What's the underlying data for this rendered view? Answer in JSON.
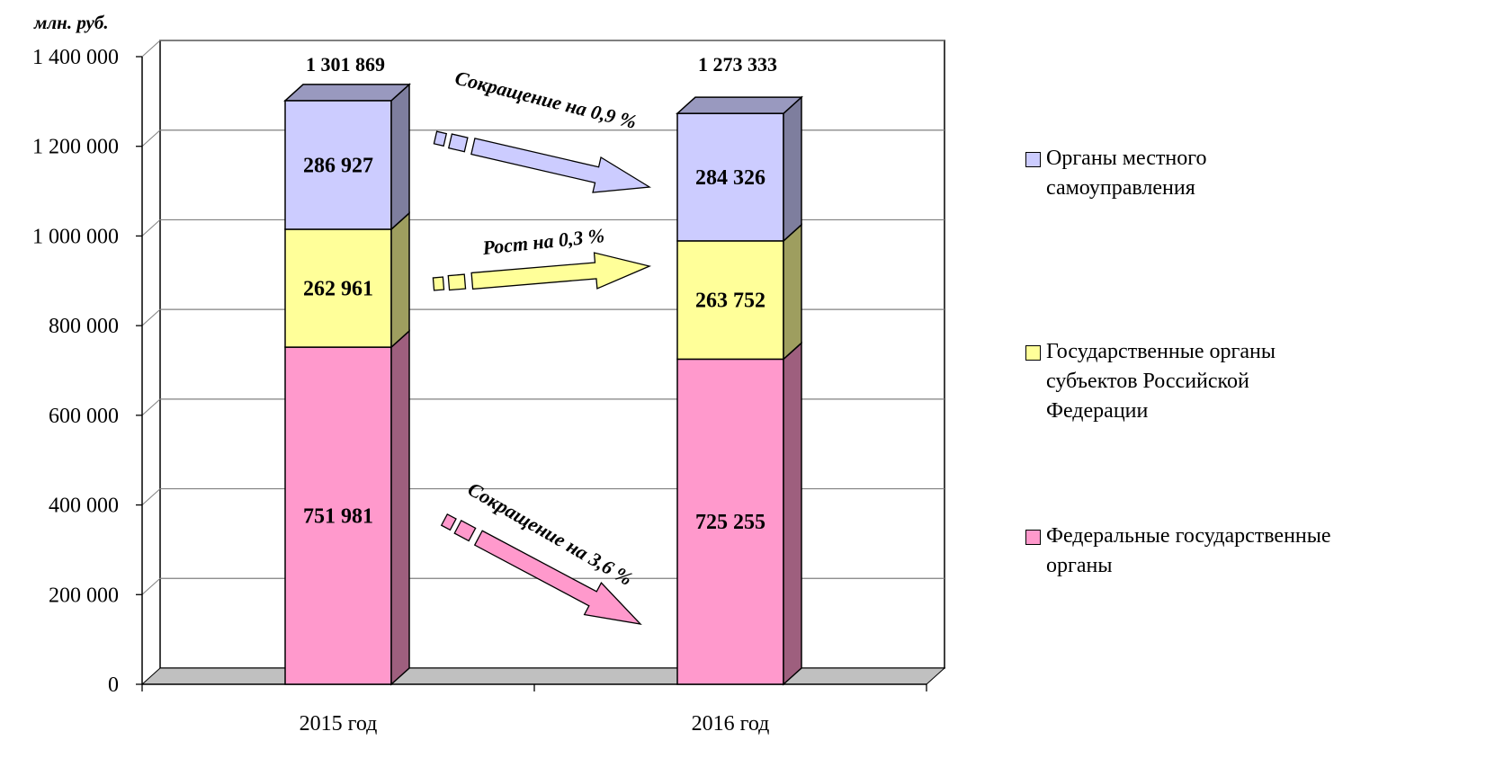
{
  "chart_data": {
    "type": "bar",
    "stacked": true,
    "unit_label": "млн. руб.",
    "categories": [
      "2015 год",
      "2016 год"
    ],
    "series": [
      {
        "name": "Федеральные государственные органы",
        "values": [
          751981,
          725255
        ],
        "color": "#FF99CC"
      },
      {
        "name": "Государственные органы субъектов Российской Федерации",
        "values": [
          262961,
          263752
        ],
        "color": "#FFFF99"
      },
      {
        "name": "Органы местного самоуправления",
        "values": [
          286927,
          284326
        ],
        "color": "#CCCCFF"
      }
    ],
    "value_labels": [
      [
        "751 981",
        "725 255"
      ],
      [
        "262 961",
        "263 752"
      ],
      [
        "286 927",
        "284 326"
      ]
    ],
    "totals": [
      1301869,
      1273333
    ],
    "total_labels": [
      "1 301 869",
      "1 273 333"
    ],
    "ylim": [
      0,
      1400000
    ],
    "yticks": [
      "0",
      "200 000",
      "400 000",
      "600 000",
      "800 000",
      "1 000 000",
      "1 200 000",
      "1 400 000"
    ],
    "grid": true,
    "legend_position": "right",
    "annotations": [
      {
        "text": "Сокращение на 0,9 %",
        "series": "Органы местного самоуправления"
      },
      {
        "text": "Рост на 0,3 %",
        "series": "Государственные органы субъектов Российской Федерации"
      },
      {
        "text": "Сокращение на 3,6 %",
        "series": "Федеральные государственные органы"
      }
    ]
  },
  "legend": {
    "items": [
      {
        "lines": [
          "Органы местного",
          "самоуправления"
        ],
        "color": "#CCCCFF"
      },
      {
        "lines": [
          "Государственные органы",
          "субъектов Российской",
          "Федерации"
        ],
        "color": "#FFFF99"
      },
      {
        "lines": [
          "Федеральные государственные",
          "органы"
        ],
        "color": "#FF99CC"
      }
    ]
  }
}
